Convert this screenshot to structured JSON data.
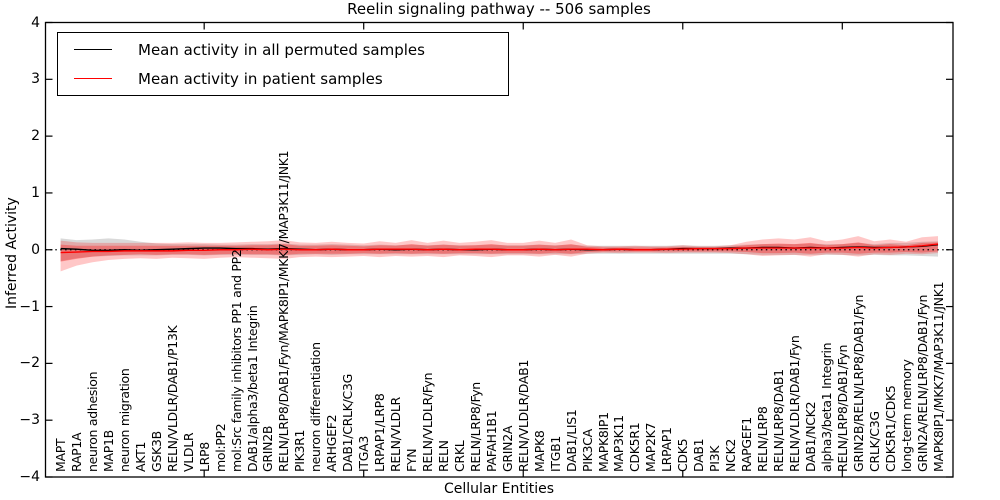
{
  "title": "Reelin signaling pathway -- 506 samples",
  "legend": {
    "items": [
      {
        "label": "Mean activity in all permuted samples",
        "color": "#000000"
      },
      {
        "label": "Mean activity in patient samples",
        "color": "#ff0000"
      }
    ]
  },
  "chart_data": {
    "type": "line",
    "title": "Reelin signaling pathway -- 506 samples",
    "xlabel": "Cellular Entities",
    "ylabel": "Inferred Activity",
    "ylim": [
      -4,
      4
    ],
    "grid": false,
    "legend_position": "upper left",
    "yticks": {
      "values": [
        4,
        3,
        2,
        1,
        0,
        -1,
        -2,
        -3,
        -4
      ],
      "labels": [
        "4",
        "3",
        "2",
        "1",
        "0",
        "−1",
        "−2",
        "−3",
        "−4"
      ]
    },
    "x_minor_tick_positions": [
      9,
      19,
      29,
      39,
      49
    ],
    "zero_line": {
      "value": 0,
      "style": "dotted",
      "color": "#000000"
    },
    "categories": [
      "MAPT",
      "RAP1A",
      "neuron adhesion",
      "MAP1B",
      "neuron migration",
      "AKT1",
      "GSK3B",
      "RELN/VLDLR/DAB1/P13K",
      "VLDLR",
      "LRP8",
      "mol:PP2",
      "mol:Src family inhibitors PP1 and PP2",
      "DAB1/alpha3/beta1 Integrin",
      "GRIN2B",
      "RELN/LRP8/DAB1/Fyn/MAPK8IP1/MKK7/MAP3K11/JNK1",
      "PIK3R1",
      "neuron differentiation",
      "ARHGEF2",
      "DAB1/CRLK/C3G",
      "ITGA3",
      "LRPAP1/LRP8",
      "RELN/VLDLR",
      "FYN",
      "RELN/VLDLR/Fyn",
      "RELN",
      "CRKL",
      "RELN/LRP8/Fyn",
      "PAFAH1B1",
      "GRIN2A",
      "RELN/VLDLR/DAB1",
      "MAPK8",
      "ITGB1",
      "DAB1/LIS1",
      "PIK3CA",
      "MAPK8IP1",
      "MAP3K11",
      "CDK5R1",
      "MAP2K7",
      "LRPAP1",
      "CDK5",
      "DAB1",
      "PI3K",
      "NCK2",
      "RAPGEF1",
      "RELN/LRP8",
      "RELN/LRP8/DAB1",
      "RELN/VLDLR/DAB1/Fyn",
      "DAB1/NCK2",
      "alpha3/beta1 Integrin",
      "RELN/LRP8/DAB1/Fyn",
      "GRIN2B/RELN/LRP8/DAB1/Fyn",
      "CRLK/C3G",
      "CDK5R1/CDK5",
      "long-term memory",
      "GRIN2A/RELN/LRP8/DAB1/Fyn",
      "MAPK8IP1/MKK7/MAP3K11/JNK1"
    ],
    "series": [
      {
        "name": "Mean activity in all permuted samples",
        "color": "#000000",
        "values": [
          0.02,
          0.01,
          -0.01,
          -0.01,
          0.0,
          -0.01,
          0.0,
          0.01,
          0.02,
          0.03,
          0.03,
          0.02,
          0.02,
          0.01,
          0.02,
          0.01,
          0.0,
          0.01,
          0.0,
          0.0,
          0.01,
          0.0,
          0.01,
          0.0,
          0.01,
          0.0,
          0.0,
          0.01,
          0.0,
          0.0,
          0.01,
          0.0,
          0.01,
          0.0,
          0.0,
          0.01,
          0.0,
          0.0,
          0.01,
          0.02,
          0.02,
          0.02,
          0.03,
          0.03,
          0.04,
          0.04,
          0.03,
          0.04,
          0.03,
          0.04,
          0.05,
          0.04,
          0.04,
          0.05,
          0.06,
          0.09
        ]
      },
      {
        "name": "Mean activity in patient samples",
        "color": "#ff0000",
        "values": [
          -0.05,
          -0.04,
          -0.03,
          -0.03,
          -0.02,
          -0.02,
          -0.02,
          -0.02,
          -0.01,
          -0.01,
          0.0,
          0.0,
          0.01,
          0.0,
          0.01,
          0.0,
          0.0,
          0.01,
          0.0,
          0.0,
          0.01,
          0.01,
          0.01,
          0.0,
          0.01,
          0.0,
          0.01,
          0.01,
          0.0,
          0.0,
          0.01,
          0.0,
          0.01,
          0.01,
          0.0,
          0.01,
          0.0,
          0.0,
          0.01,
          0.01,
          0.02,
          0.02,
          0.02,
          0.03,
          0.03,
          0.03,
          0.03,
          0.03,
          0.03,
          0.03,
          0.04,
          0.03,
          0.04,
          0.05,
          0.07,
          0.1
        ]
      }
    ],
    "bands": [
      {
        "name": "permuted-samples-range",
        "color": "#888888",
        "opacity": 0.32,
        "upper": [
          0.2,
          0.17,
          0.18,
          0.2,
          0.18,
          0.14,
          0.11,
          0.1,
          0.1,
          0.1,
          0.09,
          0.09,
          0.1,
          0.1,
          0.11,
          0.09,
          0.09,
          0.1,
          0.09,
          0.08,
          0.09,
          0.08,
          0.09,
          0.08,
          0.09,
          0.08,
          0.08,
          0.09,
          0.08,
          0.08,
          0.09,
          0.08,
          0.09,
          0.07,
          0.07,
          0.07,
          0.07,
          0.07,
          0.07,
          0.08,
          0.07,
          0.07,
          0.08,
          0.09,
          0.1,
          0.1,
          0.1,
          0.11,
          0.1,
          0.1,
          0.12,
          0.1,
          0.12,
          0.12,
          0.14,
          0.15
        ],
        "lower": [
          -0.2,
          -0.15,
          -0.12,
          -0.11,
          -0.1,
          -0.1,
          -0.1,
          -0.09,
          -0.09,
          -0.1,
          -0.09,
          -0.09,
          -0.09,
          -0.09,
          -0.1,
          -0.09,
          -0.08,
          -0.09,
          -0.08,
          -0.08,
          -0.08,
          -0.08,
          -0.08,
          -0.08,
          -0.08,
          -0.08,
          -0.08,
          -0.08,
          -0.08,
          -0.08,
          -0.08,
          -0.08,
          -0.08,
          -0.07,
          -0.07,
          -0.07,
          -0.07,
          -0.07,
          -0.07,
          -0.07,
          -0.07,
          -0.07,
          -0.07,
          -0.08,
          -0.09,
          -0.09,
          -0.09,
          -0.09,
          -0.09,
          -0.09,
          -0.1,
          -0.09,
          -0.1,
          -0.1,
          -0.11,
          -0.12
        ]
      },
      {
        "name": "patient-samples-outer-band",
        "color": "#ff0000",
        "opacity": 0.22,
        "upper": [
          0.16,
          0.13,
          0.12,
          0.12,
          0.12,
          0.12,
          0.12,
          0.12,
          0.13,
          0.12,
          0.12,
          0.13,
          0.14,
          0.15,
          0.17,
          0.13,
          0.12,
          0.14,
          0.12,
          0.11,
          0.15,
          0.12,
          0.17,
          0.12,
          0.16,
          0.12,
          0.14,
          0.17,
          0.12,
          0.12,
          0.16,
          0.12,
          0.18,
          0.08,
          0.06,
          0.06,
          0.07,
          0.06,
          0.06,
          0.08,
          0.06,
          0.06,
          0.08,
          0.14,
          0.18,
          0.2,
          0.18,
          0.22,
          0.15,
          0.18,
          0.24,
          0.15,
          0.18,
          0.14,
          0.22,
          0.24
        ],
        "lower": [
          -0.38,
          -0.28,
          -0.22,
          -0.18,
          -0.16,
          -0.15,
          -0.16,
          -0.14,
          -0.15,
          -0.16,
          -0.14,
          -0.13,
          -0.14,
          -0.15,
          -0.16,
          -0.13,
          -0.12,
          -0.13,
          -0.12,
          -0.11,
          -0.13,
          -0.11,
          -0.12,
          -0.11,
          -0.13,
          -0.1,
          -0.11,
          -0.13,
          -0.1,
          -0.1,
          -0.12,
          -0.09,
          -0.12,
          -0.07,
          -0.05,
          -0.06,
          -0.05,
          -0.05,
          -0.06,
          -0.05,
          -0.05,
          -0.05,
          -0.06,
          -0.08,
          -0.11,
          -0.1,
          -0.09,
          -0.12,
          -0.08,
          -0.09,
          -0.12,
          -0.08,
          -0.09,
          -0.07,
          -0.08,
          -0.06
        ]
      },
      {
        "name": "patient-samples-inner-band",
        "color": "#ff0000",
        "opacity": 0.3,
        "upper": [
          0.09,
          0.07,
          0.07,
          0.07,
          0.07,
          0.07,
          0.07,
          0.07,
          0.07,
          0.07,
          0.07,
          0.07,
          0.08,
          0.08,
          0.1,
          0.07,
          0.07,
          0.08,
          0.07,
          0.06,
          0.08,
          0.07,
          0.1,
          0.07,
          0.09,
          0.07,
          0.08,
          0.1,
          0.07,
          0.07,
          0.09,
          0.07,
          0.1,
          0.05,
          0.04,
          0.04,
          0.04,
          0.04,
          0.04,
          0.05,
          0.04,
          0.04,
          0.05,
          0.08,
          0.1,
          0.11,
          0.1,
          0.12,
          0.08,
          0.1,
          0.13,
          0.08,
          0.1,
          0.08,
          0.12,
          0.13
        ],
        "lower": [
          -0.21,
          -0.16,
          -0.12,
          -0.1,
          -0.09,
          -0.08,
          -0.09,
          -0.08,
          -0.08,
          -0.09,
          -0.08,
          -0.07,
          -0.08,
          -0.08,
          -0.09,
          -0.07,
          -0.07,
          -0.07,
          -0.07,
          -0.06,
          -0.07,
          -0.06,
          -0.07,
          -0.06,
          -0.07,
          -0.06,
          -0.06,
          -0.07,
          -0.06,
          -0.06,
          -0.07,
          -0.05,
          -0.07,
          -0.04,
          -0.03,
          -0.03,
          -0.03,
          -0.03,
          -0.03,
          -0.03,
          -0.03,
          -0.03,
          -0.03,
          -0.04,
          -0.06,
          -0.06,
          -0.05,
          -0.07,
          -0.05,
          -0.05,
          -0.07,
          -0.05,
          -0.05,
          -0.04,
          -0.05,
          -0.03
        ]
      }
    ]
  }
}
